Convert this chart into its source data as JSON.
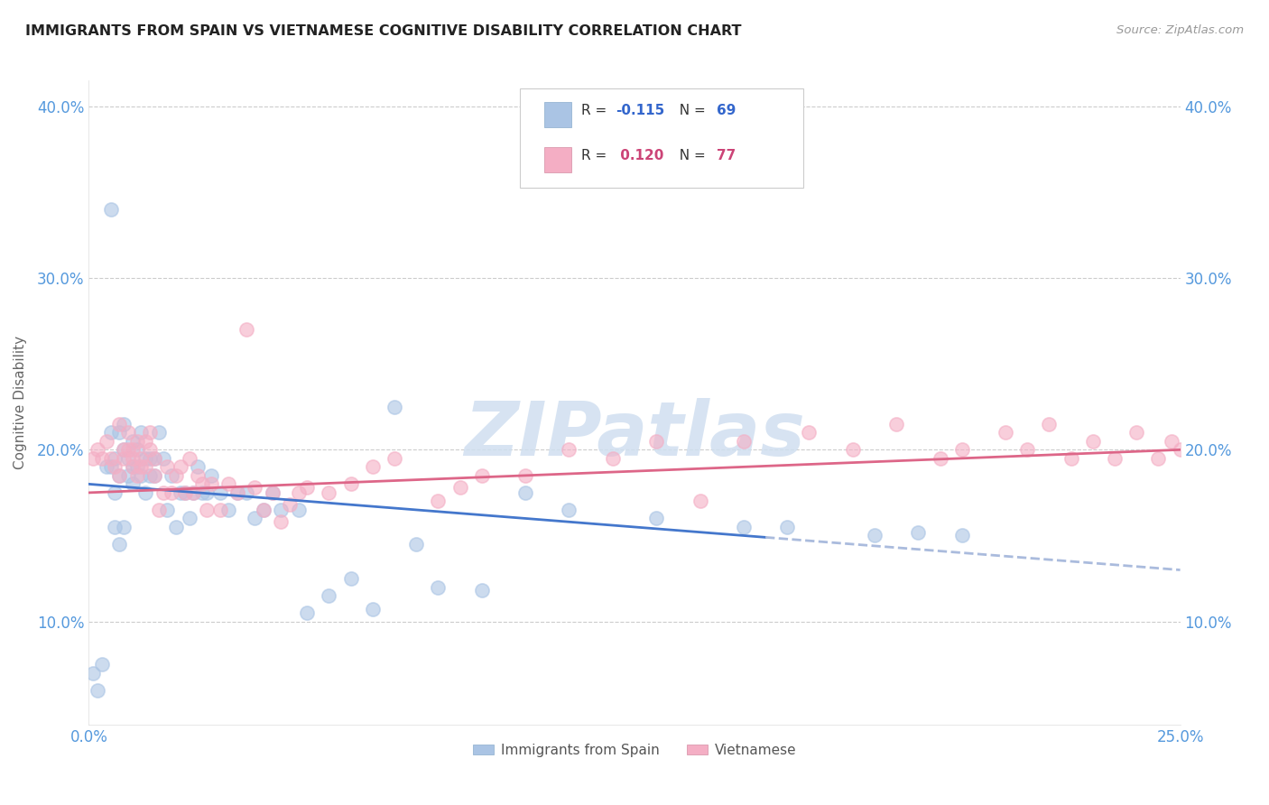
{
  "title": "IMMIGRANTS FROM SPAIN VS VIETNAMESE COGNITIVE DISABILITY CORRELATION CHART",
  "source_text": "Source: ZipAtlas.com",
  "ylabel": "Cognitive Disability",
  "xlim": [
    0.0,
    0.25
  ],
  "ylim": [
    0.04,
    0.415
  ],
  "yticks": [
    0.1,
    0.2,
    0.3,
    0.4
  ],
  "yticklabels": [
    "10.0%",
    "20.0%",
    "30.0%",
    "40.0%"
  ],
  "xtick_positions": [
    0.0,
    0.05,
    0.1,
    0.15,
    0.2,
    0.25
  ],
  "legend_top": [
    {
      "label_r": "R = -0.115",
      "label_n": "  N = 69",
      "color": "#aac4e4"
    },
    {
      "label_r": "R =  0.120",
      "label_n": "  N = 77",
      "color": "#f4aec4"
    }
  ],
  "legend_bottom": [
    {
      "label": "Immigrants from Spain",
      "color": "#aac4e4"
    },
    {
      "label": "Vietnamese",
      "color": "#f4aec4"
    }
  ],
  "series_spain": {
    "scatter_color": "#aac4e4",
    "trend_color": "#4477cc",
    "trend_color_dash": "#aabbdd",
    "r": -0.115,
    "trend_y0": 0.18,
    "trend_y1": 0.13
  },
  "series_viet": {
    "scatter_color": "#f4aec4",
    "trend_color": "#dd6688",
    "r": 0.12,
    "trend_y0": 0.175,
    "trend_y1": 0.2
  },
  "watermark": "ZIPatlas",
  "watermark_color": "#d0dff0",
  "background_color": "#ffffff",
  "grid_color": "#cccccc",
  "tick_color": "#5599dd",
  "spain_x": [
    0.001,
    0.002,
    0.003,
    0.004,
    0.005,
    0.005,
    0.006,
    0.006,
    0.007,
    0.007,
    0.008,
    0.008,
    0.009,
    0.009,
    0.01,
    0.01,
    0.01,
    0.011,
    0.011,
    0.012,
    0.012,
    0.013,
    0.013,
    0.014,
    0.014,
    0.015,
    0.015,
    0.016,
    0.017,
    0.018,
    0.019,
    0.02,
    0.021,
    0.022,
    0.023,
    0.024,
    0.025,
    0.026,
    0.027,
    0.028,
    0.03,
    0.032,
    0.034,
    0.036,
    0.038,
    0.04,
    0.042,
    0.044,
    0.048,
    0.05,
    0.055,
    0.06,
    0.065,
    0.07,
    0.075,
    0.08,
    0.09,
    0.1,
    0.11,
    0.13,
    0.15,
    0.16,
    0.18,
    0.19,
    0.2,
    0.005,
    0.006,
    0.007,
    0.008
  ],
  "spain_y": [
    0.07,
    0.06,
    0.075,
    0.19,
    0.19,
    0.21,
    0.195,
    0.175,
    0.21,
    0.185,
    0.2,
    0.215,
    0.185,
    0.195,
    0.19,
    0.205,
    0.18,
    0.2,
    0.19,
    0.21,
    0.185,
    0.195,
    0.175,
    0.195,
    0.185,
    0.185,
    0.195,
    0.21,
    0.195,
    0.165,
    0.185,
    0.155,
    0.175,
    0.175,
    0.16,
    0.175,
    0.19,
    0.175,
    0.175,
    0.185,
    0.175,
    0.165,
    0.175,
    0.175,
    0.16,
    0.165,
    0.175,
    0.165,
    0.165,
    0.105,
    0.115,
    0.125,
    0.107,
    0.225,
    0.145,
    0.12,
    0.118,
    0.175,
    0.165,
    0.16,
    0.155,
    0.155,
    0.15,
    0.152,
    0.15,
    0.34,
    0.155,
    0.145,
    0.155
  ],
  "viet_x": [
    0.001,
    0.002,
    0.003,
    0.004,
    0.005,
    0.006,
    0.007,
    0.008,
    0.009,
    0.01,
    0.01,
    0.011,
    0.012,
    0.013,
    0.014,
    0.015,
    0.016,
    0.017,
    0.018,
    0.019,
    0.02,
    0.021,
    0.022,
    0.023,
    0.024,
    0.025,
    0.026,
    0.027,
    0.028,
    0.03,
    0.032,
    0.034,
    0.036,
    0.038,
    0.04,
    0.042,
    0.044,
    0.046,
    0.048,
    0.05,
    0.055,
    0.06,
    0.065,
    0.07,
    0.08,
    0.085,
    0.09,
    0.1,
    0.11,
    0.12,
    0.13,
    0.14,
    0.15,
    0.165,
    0.175,
    0.185,
    0.195,
    0.2,
    0.21,
    0.215,
    0.22,
    0.225,
    0.23,
    0.235,
    0.24,
    0.245,
    0.248,
    0.25,
    0.012,
    0.013,
    0.014,
    0.015,
    0.008,
    0.009,
    0.007,
    0.01,
    0.011
  ],
  "viet_y": [
    0.195,
    0.2,
    0.195,
    0.205,
    0.195,
    0.19,
    0.215,
    0.2,
    0.21,
    0.2,
    0.19,
    0.205,
    0.19,
    0.205,
    0.21,
    0.195,
    0.165,
    0.175,
    0.19,
    0.175,
    0.185,
    0.19,
    0.175,
    0.195,
    0.175,
    0.185,
    0.18,
    0.165,
    0.18,
    0.165,
    0.18,
    0.175,
    0.27,
    0.178,
    0.165,
    0.175,
    0.158,
    0.168,
    0.175,
    0.178,
    0.175,
    0.18,
    0.19,
    0.195,
    0.17,
    0.178,
    0.185,
    0.185,
    0.2,
    0.195,
    0.205,
    0.17,
    0.205,
    0.21,
    0.2,
    0.215,
    0.195,
    0.2,
    0.21,
    0.2,
    0.215,
    0.195,
    0.205,
    0.195,
    0.21,
    0.195,
    0.205,
    0.2,
    0.195,
    0.19,
    0.2,
    0.185,
    0.195,
    0.2,
    0.185,
    0.195,
    0.185
  ]
}
